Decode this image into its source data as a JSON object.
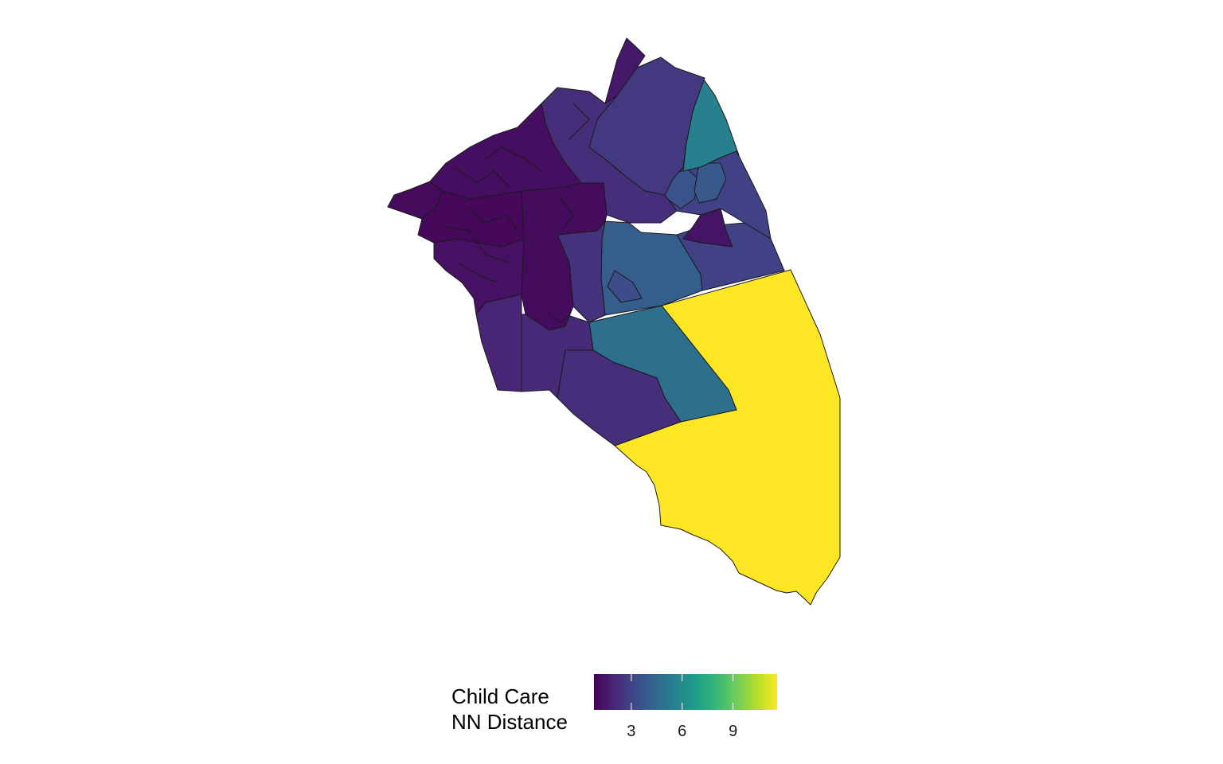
{
  "legend": {
    "title_line1": "Child Care",
    "title_line2": "NN Distance",
    "scale_min": 0.8,
    "scale_max": 11.6,
    "ticks": [
      {
        "value": 3,
        "label": "3"
      },
      {
        "value": 6,
        "label": "6"
      },
      {
        "value": 9,
        "label": "9"
      }
    ],
    "palette": [
      "#440154",
      "#482878",
      "#3E4A89",
      "#31688E",
      "#26828E",
      "#1F9E89",
      "#35B779",
      "#6DCD59",
      "#B4DE2C",
      "#FDE725"
    ]
  },
  "regions": [
    {
      "id": "nw-core-a",
      "value": 1.2
    },
    {
      "id": "nw-core-b",
      "value": 1.0
    },
    {
      "id": "nw-core-c",
      "value": 1.3
    },
    {
      "id": "nw-tip",
      "value": 1.1
    },
    {
      "id": "north-strip",
      "value": 1.5
    },
    {
      "id": "north-central",
      "value": 2.2
    },
    {
      "id": "north-east",
      "value": 2.6
    },
    {
      "id": "north-east-teal",
      "value": 5.5
    },
    {
      "id": "east-upper",
      "value": 2.9
    },
    {
      "id": "east-inner-a",
      "value": 3.6
    },
    {
      "id": "east-inner-b",
      "value": 3.8
    },
    {
      "id": "central-dark",
      "value": 1.1
    },
    {
      "id": "central-mid",
      "value": 2.4
    },
    {
      "id": "central-blue",
      "value": 4.0
    },
    {
      "id": "central-blue-inner",
      "value": 3.3
    },
    {
      "id": "east-mid",
      "value": 2.9
    },
    {
      "id": "east-dark-notch",
      "value": 1.4
    },
    {
      "id": "west-lower",
      "value": 1.9
    },
    {
      "id": "south-west",
      "value": 2.1
    },
    {
      "id": "south-center",
      "value": 2.3
    },
    {
      "id": "south-mid",
      "value": 2.2
    },
    {
      "id": "teal-south",
      "value": 4.7
    },
    {
      "id": "yellow-southeast",
      "value": 11.6
    }
  ]
}
